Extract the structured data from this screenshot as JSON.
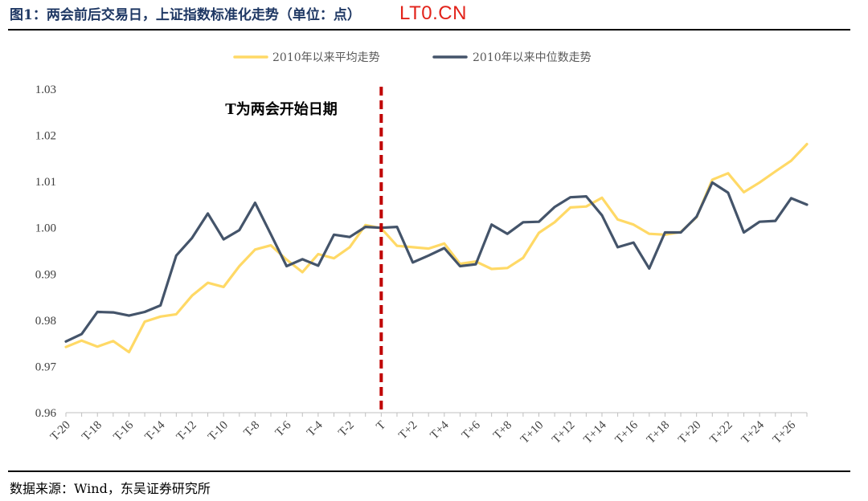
{
  "header": {
    "title": "图1：两会前后交易日，上证指数标准化走势（单位：点）",
    "watermark": "LT0.CN"
  },
  "footer": {
    "source": "数据来源：Wind，东吴证券研究所"
  },
  "chart_data": {
    "type": "line",
    "x": [
      "T-20",
      "T-19",
      "T-18",
      "T-17",
      "T-16",
      "T-15",
      "T-14",
      "T-13",
      "T-12",
      "T-11",
      "T-10",
      "T-9",
      "T-8",
      "T-7",
      "T-6",
      "T-5",
      "T-4",
      "T-3",
      "T-2",
      "T-1",
      "T",
      "T+1",
      "T+2",
      "T+3",
      "T+4",
      "T+5",
      "T+6",
      "T+7",
      "T+8",
      "T+9",
      "T+10",
      "T+11",
      "T+12",
      "T+13",
      "T+14",
      "T+15",
      "T+16",
      "T+17",
      "T+18",
      "T+19",
      "T+20",
      "T+21",
      "T+22",
      "T+23",
      "T+24",
      "T+25",
      "T+26",
      "T+27"
    ],
    "xtick_labels": [
      "T-20",
      "T-18",
      "T-16",
      "T-14",
      "T-12",
      "T-10",
      "T-8",
      "T-6",
      "T-4",
      "T-2",
      "T",
      "T+2",
      "T+4",
      "T+6",
      "T+8",
      "T+10",
      "T+12",
      "T+14",
      "T+16",
      "T+18",
      "T+20",
      "T+22",
      "T+24",
      "T+26"
    ],
    "yticks": [
      "0.96",
      "0.97",
      "0.98",
      "0.99",
      "1.00",
      "1.01",
      "1.02",
      "1.03"
    ],
    "ylim": [
      0.96,
      1.03
    ],
    "legend_position": "top-center",
    "series": [
      {
        "name": "2010年以来平均走势",
        "color": "#ffd966",
        "values": [
          0.9742,
          0.9756,
          0.9743,
          0.9755,
          0.9731,
          0.9797,
          0.9808,
          0.9813,
          0.9853,
          0.9881,
          0.9872,
          0.9917,
          0.9953,
          0.9962,
          0.9931,
          0.9904,
          0.9943,
          0.9934,
          0.9958,
          1.0006,
          0.9999,
          0.9961,
          0.9958,
          0.9955,
          0.9966,
          0.9922,
          0.9927,
          0.9911,
          0.9913,
          0.9935,
          0.9989,
          1.0012,
          1.0044,
          1.0046,
          1.0065,
          1.0018,
          1.0007,
          0.9987,
          0.9985,
          0.9991,
          1.0023,
          1.0104,
          1.0118,
          1.0077,
          1.0098,
          1.0122,
          1.0145,
          1.0181
        ]
      },
      {
        "name": "2010年以来中位数走势",
        "color": "#44546a",
        "values": [
          0.9754,
          0.977,
          0.9818,
          0.9817,
          0.981,
          0.9818,
          0.9832,
          0.994,
          0.9978,
          1.0031,
          0.9975,
          0.9995,
          1.0054,
          0.9986,
          0.9917,
          0.9932,
          0.9918,
          0.9985,
          0.998,
          1.0002,
          1.0,
          1.0002,
          0.9925,
          0.994,
          0.9956,
          0.9917,
          0.9921,
          1.0007,
          0.9987,
          1.0012,
          1.0013,
          1.0045,
          1.0066,
          1.0068,
          1.0027,
          0.9958,
          0.9968,
          0.9912,
          0.999,
          0.999,
          1.0024,
          1.0098,
          1.0076,
          0.999,
          1.0013,
          1.0015,
          1.0064,
          1.005
        ]
      }
    ],
    "marker_line": {
      "x": "T",
      "color": "#c00000",
      "label": "T为两会开始日期"
    }
  }
}
